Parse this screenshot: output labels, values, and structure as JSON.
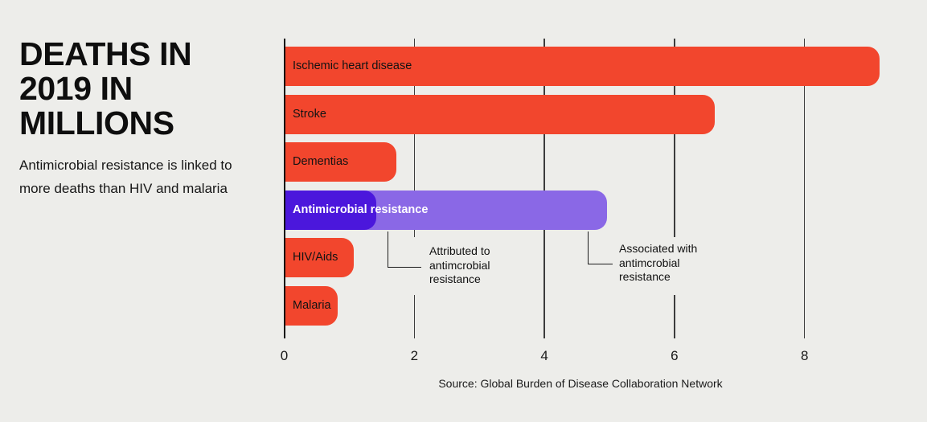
{
  "header": {
    "title": "DEATHS IN\n2019 IN\nMILLIONS",
    "subtitle": "Antimicrobial resistance is linked to\nmore deaths than HIV and malaria"
  },
  "chart_data": {
    "type": "bar",
    "orientation": "horizontal",
    "title": "DEATHS IN 2019 IN MILLIONS",
    "xlabel": "",
    "ylabel": "",
    "unit": "millions of deaths",
    "categories": [
      "Ischemic heart disease",
      "Stroke",
      "Dementias",
      "Antimicrobial resistance",
      "HIV/Aids",
      "Malaria"
    ],
    "values": [
      9.14,
      6.6,
      1.7,
      4.95,
      1.05,
      0.8
    ],
    "amr_breakdown": {
      "category": "Antimicrobial resistance",
      "attributed": 1.4,
      "associated": 4.95
    },
    "xlim": [
      0,
      9.9
    ],
    "x_ticks": [
      0,
      2,
      4,
      6,
      8
    ],
    "x_ticks_with_gap": [
      2,
      6
    ],
    "grid": "vertical",
    "legend": "none",
    "annotations": [
      {
        "id": "attributed",
        "text": "Attributed to\nantimcrobial\nresistance"
      },
      {
        "id": "associated",
        "text": "Associated with\nantimcrobial\nresistance"
      }
    ],
    "source": "Source: Global Burden of Disease Collaboration Network",
    "colors": {
      "background": "#EDEDEA",
      "bar": "#F2462D",
      "amr_attributed": "#4B17DC",
      "amr_associated": "#8A68E6",
      "bar_label": "#131313",
      "amr_label": "#FFFFFF",
      "grid": "#3C3C3C",
      "axis": "#121212"
    }
  }
}
